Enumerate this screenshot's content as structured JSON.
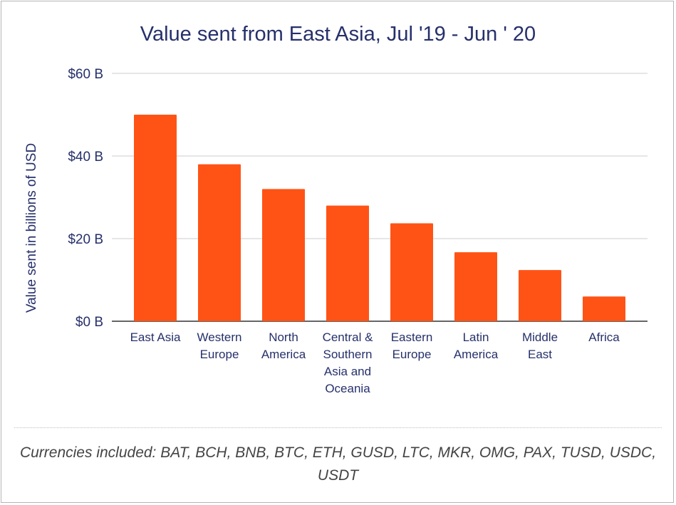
{
  "chart_data": {
    "type": "bar",
    "title": "Value sent from East Asia, Jul '19 - Jun ' 20",
    "ylabel": "Value sent in billions of USD",
    "xlabel": "",
    "categories": [
      [
        "East Asia"
      ],
      [
        "Western",
        "Europe"
      ],
      [
        "North",
        "America"
      ],
      [
        "Central &",
        "Southern",
        "Asia and",
        "Oceania"
      ],
      [
        "Eastern",
        "Europe"
      ],
      [
        "Latin",
        "America"
      ],
      [
        "Middle",
        "East"
      ],
      [
        "Africa"
      ]
    ],
    "values": [
      50,
      38,
      32,
      28,
      23.7,
      16.7,
      12.4,
      6
    ],
    "ylim": [
      0,
      60
    ],
    "yticks": [
      {
        "value": 0,
        "label": "$0 B"
      },
      {
        "value": 20,
        "label": "$20 B"
      },
      {
        "value": 40,
        "label": "$40 B"
      },
      {
        "value": 60,
        "label": "$60 B"
      }
    ],
    "grid": true,
    "colors": {
      "bar": "#ff5316",
      "text": "#26306b",
      "grid": "#cccccc",
      "axis": "#333333"
    }
  },
  "footnote": "Currencies included: BAT, BCH, BNB, BTC, ETH, GUSD, LTC, MKR, OMG, PAX, TUSD, USDC, USDT"
}
